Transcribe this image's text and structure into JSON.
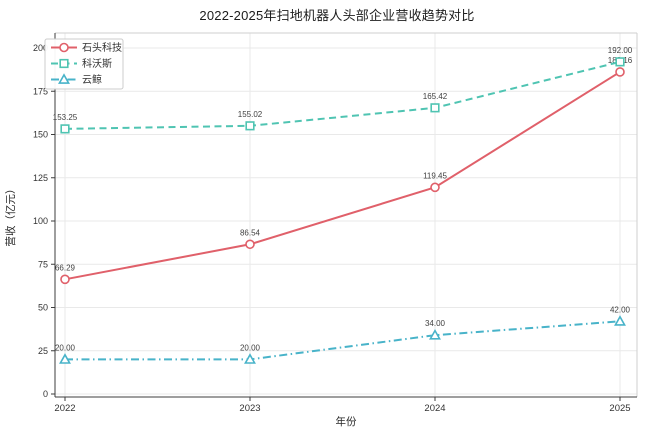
{
  "chart_data": {
    "type": "line",
    "title": "2022-2025年扫地机器人头部企业营收趋势对比",
    "xlabel": "年份",
    "ylabel": "营收（亿元）",
    "categories": [
      "2022",
      "2023",
      "2024",
      "2025"
    ],
    "y_ticks": [
      0,
      25,
      50,
      75,
      100,
      125,
      150,
      175,
      200
    ],
    "ylim": [
      0,
      208
    ],
    "grid": true,
    "legend_position": "upper-left",
    "series": [
      {
        "name": "石头科技",
        "values": [
          66.29,
          86.54,
          119.45,
          186.16
        ],
        "labels": [
          "66.29",
          "86.54",
          "119.45",
          "186.16"
        ],
        "color": "#e0606a",
        "line_style": "solid",
        "marker": "circle"
      },
      {
        "name": "科沃斯",
        "values": [
          153.25,
          155.02,
          165.42,
          192.0
        ],
        "labels": [
          "153.25",
          "155.02",
          "165.42",
          "192.00"
        ],
        "color": "#4fc4b2",
        "line_style": "dashed",
        "marker": "square"
      },
      {
        "name": "云鲸",
        "values": [
          20.0,
          20.0,
          34.0,
          42.0
        ],
        "labels": [
          "20.00",
          "20.00",
          "34.00",
          "42.00"
        ],
        "color": "#48b3c9",
        "line_style": "dashdot",
        "marker": "triangle"
      }
    ],
    "style": {
      "grid_color": "#e9e9e9",
      "spine_dark": "#3c3c3c",
      "spine_light": "#cfcfcf",
      "tick_label_color": "#333333",
      "data_label_color": "#3f3f3f",
      "legend_border": "#cccccc"
    }
  }
}
